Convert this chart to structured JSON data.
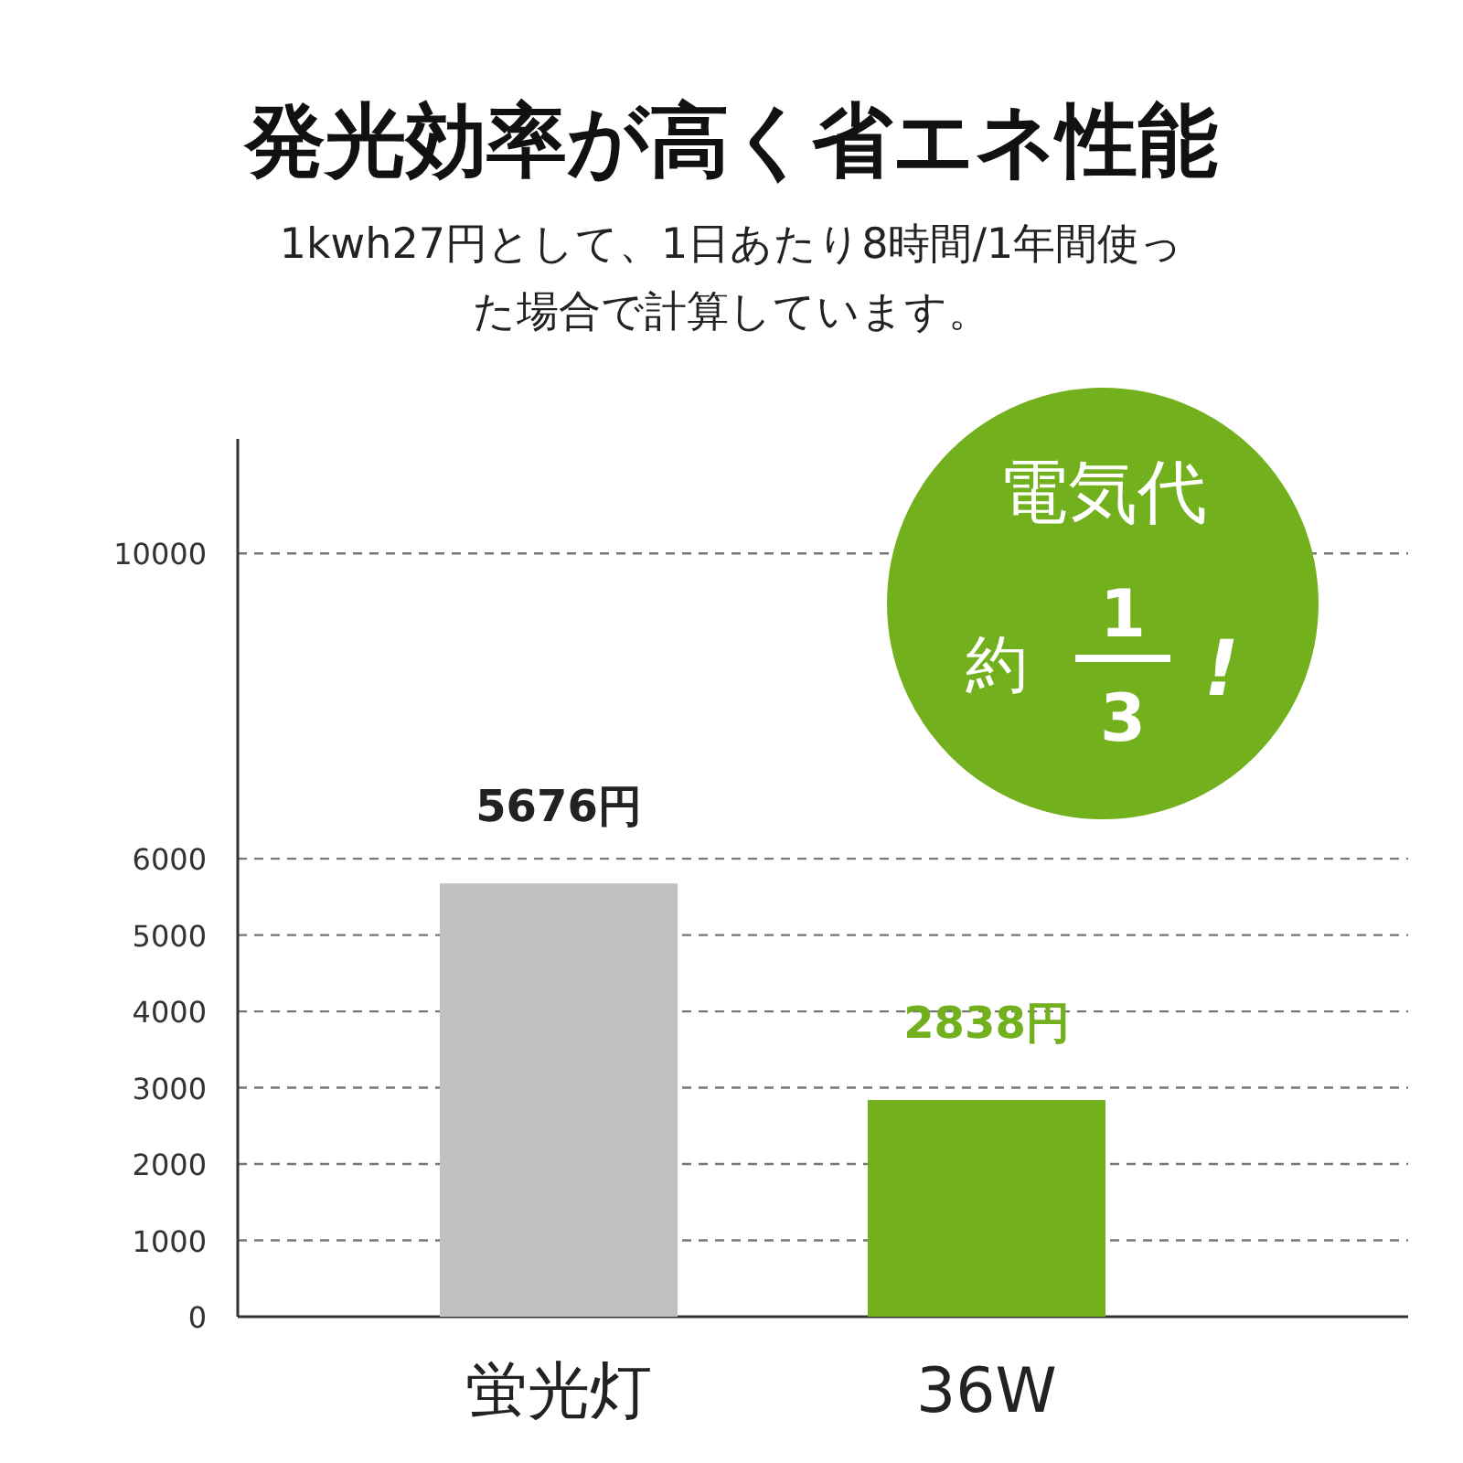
{
  "chart_data": {
    "type": "bar",
    "title": "発光効率が高く省エネ性能",
    "subtitle": "1kwh27円として、1日あたり8時間/1年間使った場合で計算しています。",
    "categories": [
      "蛍光灯",
      "36W"
    ],
    "values": [
      5676,
      2838
    ],
    "colors": [
      "#c0c0c0",
      "#72b01d"
    ],
    "value_labels": [
      "5676円",
      "2838円"
    ],
    "ylim": [
      0,
      11500
    ],
    "yticks": [
      0,
      1000,
      2000,
      3000,
      4000,
      5000,
      6000,
      10000
    ],
    "grid": "y",
    "annotations": [
      "電気代",
      "約",
      "1",
      "3",
      "!"
    ]
  }
}
